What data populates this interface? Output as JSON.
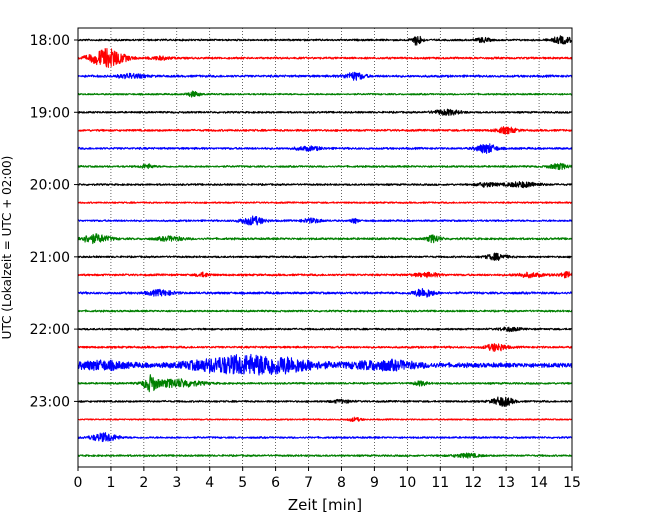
{
  "chart_data": {
    "type": "line",
    "chart_kind": "helicorder seismogram",
    "xlabel": "Zeit  [min]",
    "ylabel": "UTC (Lokalzeit = UTC + 02:00)",
    "xlim": [
      0,
      15
    ],
    "x_ticks": [
      "0",
      "1",
      "2",
      "3",
      "4",
      "5",
      "6",
      "7",
      "8",
      "9",
      "10",
      "11",
      "12",
      "13",
      "14",
      "15"
    ],
    "y_tick_labels": [
      "18:00",
      "19:00",
      "20:00",
      "21:00",
      "22:00",
      "23:00"
    ],
    "grid": "vertical dotted lines at each minute",
    "trace_interval_min": 15,
    "colors": [
      "#000000",
      "#ff0000",
      "#0000ff",
      "#008000"
    ],
    "traces": [
      {
        "start": "18:00",
        "color": "#000000",
        "base_amp": 0.8,
        "events": [
          [
            10.3,
            5,
            0.15
          ],
          [
            14.7,
            3.5,
            0.3
          ],
          [
            12.3,
            2.2,
            0.2
          ]
        ]
      },
      {
        "start": "18:15",
        "color": "#ff0000",
        "base_amp": 0.9,
        "events": [
          [
            0.9,
            9,
            0.5
          ],
          [
            2.5,
            1.5,
            0.3
          ]
        ]
      },
      {
        "start": "18:30",
        "color": "#0000ff",
        "base_amp": 1.0,
        "events": [
          [
            8.4,
            3.5,
            0.3
          ],
          [
            1.6,
            2,
            0.4
          ]
        ]
      },
      {
        "start": "18:45",
        "color": "#008000",
        "base_amp": 0.7,
        "events": [
          [
            3.5,
            2.5,
            0.2
          ]
        ]
      },
      {
        "start": "19:00",
        "color": "#000000",
        "base_amp": 0.8,
        "events": [
          [
            11.2,
            2.5,
            0.4
          ]
        ]
      },
      {
        "start": "19:15",
        "color": "#ff0000",
        "base_amp": 0.9,
        "events": [
          [
            13.0,
            3,
            0.3
          ]
        ]
      },
      {
        "start": "19:30",
        "color": "#0000ff",
        "base_amp": 0.9,
        "events": [
          [
            12.4,
            4.5,
            0.3
          ],
          [
            7.0,
            1.8,
            0.4
          ]
        ]
      },
      {
        "start": "19:45",
        "color": "#008000",
        "base_amp": 0.8,
        "events": [
          [
            14.6,
            2.5,
            0.3
          ],
          [
            2.1,
            2,
            0.2
          ]
        ]
      },
      {
        "start": "20:00",
        "color": "#000000",
        "base_amp": 0.8,
        "events": [
          [
            13.5,
            2.5,
            0.5
          ],
          [
            12.4,
            2,
            0.3
          ]
        ]
      },
      {
        "start": "20:15",
        "color": "#ff0000",
        "base_amp": 0.7,
        "events": []
      },
      {
        "start": "20:30",
        "color": "#0000ff",
        "base_amp": 0.8,
        "events": [
          [
            5.3,
            4,
            0.35
          ],
          [
            8.4,
            2.5,
            0.1
          ],
          [
            7.1,
            2,
            0.3
          ]
        ]
      },
      {
        "start": "20:45",
        "color": "#008000",
        "base_amp": 0.9,
        "events": [
          [
            0.5,
            4,
            0.45
          ],
          [
            10.8,
            3.5,
            0.2
          ],
          [
            2.8,
            2,
            0.4
          ]
        ]
      },
      {
        "start": "21:00",
        "color": "#000000",
        "base_amp": 0.8,
        "events": [
          [
            12.7,
            3,
            0.3
          ]
        ]
      },
      {
        "start": "21:15",
        "color": "#ff0000",
        "base_amp": 0.9,
        "events": [
          [
            13.7,
            2,
            0.4
          ],
          [
            14.9,
            2.5,
            0.3
          ],
          [
            3.8,
            2,
            0.2
          ],
          [
            10.6,
            1.8,
            0.4
          ]
        ]
      },
      {
        "start": "21:30",
        "color": "#0000ff",
        "base_amp": 1.0,
        "events": [
          [
            10.5,
            4,
            0.3
          ],
          [
            2.5,
            2.5,
            0.4
          ]
        ]
      },
      {
        "start": "21:45",
        "color": "#008000",
        "base_amp": 0.8,
        "events": []
      },
      {
        "start": "22:00",
        "color": "#000000",
        "base_amp": 0.8,
        "events": [
          [
            13.1,
            1.8,
            0.3
          ]
        ]
      },
      {
        "start": "22:15",
        "color": "#ff0000",
        "base_amp": 0.9,
        "events": [
          [
            12.7,
            3.5,
            0.3
          ]
        ]
      },
      {
        "start": "22:30",
        "color": "#0000ff",
        "base_amp": 2.0,
        "events": [
          [
            4.5,
            6,
            1.2
          ],
          [
            6.0,
            7,
            1.2
          ],
          [
            9.3,
            4,
            1.0
          ],
          [
            0.7,
            3.5,
            0.8
          ]
        ]
      },
      {
        "start": "22:45",
        "color": "#008000",
        "base_amp": 0.8,
        "events": [
          [
            2.2,
            7,
            0.2
          ],
          [
            3.0,
            4,
            0.7
          ],
          [
            10.4,
            2,
            0.2
          ]
        ]
      },
      {
        "start": "23:00",
        "color": "#000000",
        "base_amp": 0.8,
        "events": [
          [
            12.9,
            4.5,
            0.3
          ],
          [
            8.0,
            1.5,
            0.3
          ]
        ]
      },
      {
        "start": "23:15",
        "color": "#ff0000",
        "base_amp": 0.6,
        "events": [
          [
            8.4,
            1.8,
            0.2
          ]
        ]
      },
      {
        "start": "23:30",
        "color": "#0000ff",
        "base_amp": 0.8,
        "events": [
          [
            0.8,
            4,
            0.4
          ]
        ]
      },
      {
        "start": "23:45",
        "color": "#008000",
        "base_amp": 0.8,
        "events": [
          [
            11.8,
            1.8,
            0.4
          ]
        ]
      }
    ]
  }
}
